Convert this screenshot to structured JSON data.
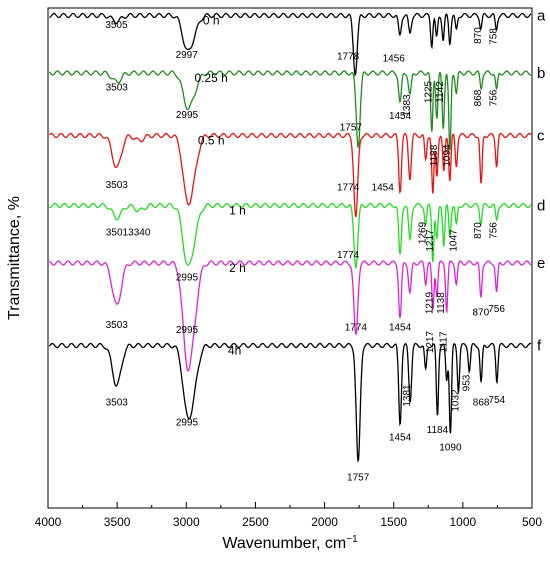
{
  "chart_data": {
    "type": "line",
    "xlabel": "Wavenumber, cm",
    "xlabel_superscript": "−1",
    "ylabel": "Transmittance, %",
    "xlim": [
      4000,
      500
    ],
    "x_reversed": true,
    "xticks": [
      4000,
      3500,
      3000,
      2500,
      2000,
      1500,
      1000,
      500
    ],
    "yticks_shown": false,
    "grid": false,
    "series": [
      {
        "name": "0 h",
        "letter": "a",
        "color": "#000000",
        "level": 0.985,
        "peaks": [
          [
            3505,
            0.012
          ],
          [
            2997,
            0.062
          ],
          [
            2945,
            0.03
          ],
          [
            1778,
            0.115
          ],
          [
            1456,
            0.04
          ],
          [
            1383,
            0.035
          ],
          [
            1225,
            0.06
          ],
          [
            1190,
            0.045
          ],
          [
            1142,
            0.05
          ],
          [
            1094,
            0.055
          ],
          [
            1047,
            0.03
          ],
          [
            870,
            0.025
          ],
          [
            758,
            0.028
          ]
        ],
        "annotations": [
          {
            "text": "0 h",
            "x": 2820,
            "drop": -0.002,
            "rot": 0
          },
          {
            "text": "3505",
            "x": 3505,
            "drop": 0.005,
            "rot": 0
          },
          {
            "text": "2997",
            "x": 2997,
            "drop": 0.065,
            "rot": 0
          },
          {
            "text": "1778",
            "x": 1830,
            "drop": 0.068,
            "rot": 0
          },
          {
            "text": "1456",
            "x": 1500,
            "drop": 0.072,
            "rot": 0
          },
          {
            "text": "870",
            "x": 870,
            "drop": 0.04,
            "rot": -90
          },
          {
            "text": "758",
            "x": 758,
            "drop": 0.042,
            "rot": -90
          }
        ]
      },
      {
        "name": "0.25 h",
        "letter": "b",
        "color": "#1e8c1e",
        "level": 0.87,
        "peaks": [
          [
            3503,
            0.018
          ],
          [
            2995,
            0.06
          ],
          [
            2945,
            0.03
          ],
          [
            1757,
            0.145
          ],
          [
            1454,
            0.06
          ],
          [
            1383,
            0.045
          ],
          [
            1225,
            0.12
          ],
          [
            1188,
            0.09
          ],
          [
            1142,
            0.11
          ],
          [
            1094,
            0.16
          ],
          [
            1047,
            0.04
          ],
          [
            868,
            0.03
          ],
          [
            756,
            0.035
          ]
        ],
        "annotations": [
          {
            "text": "0.25 h",
            "x": 2820,
            "drop": -0.002,
            "rot": 0
          },
          {
            "text": "3503",
            "x": 3503,
            "drop": 0.015,
            "rot": 0
          },
          {
            "text": "2995",
            "x": 2995,
            "drop": 0.07,
            "rot": 0
          },
          {
            "text": "1757",
            "x": 1810,
            "drop": 0.095,
            "rot": 0
          },
          {
            "text": "1454",
            "x": 1454,
            "drop": 0.072,
            "rot": 0
          },
          {
            "text": "1383",
            "x": 1383,
            "drop": 0.065,
            "rot": -90
          },
          {
            "text": "1225",
            "x": 1225,
            "drop": 0.038,
            "rot": -90
          },
          {
            "text": "1142",
            "x": 1142,
            "drop": 0.038,
            "rot": -90
          },
          {
            "text": "1188",
            "x": 1188,
            "drop": 0.165,
            "rot": -90
          },
          {
            "text": "1094",
            "x": 1094,
            "drop": 0.165,
            "rot": -90
          },
          {
            "text": "868",
            "x": 868,
            "drop": 0.05,
            "rot": -90
          },
          {
            "text": "756",
            "x": 756,
            "drop": 0.05,
            "rot": -90
          }
        ]
      },
      {
        "name": "0.5 h",
        "letter": "c",
        "color": "#ee1111",
        "level": 0.745,
        "peaks": [
          [
            3503,
            0.065
          ],
          [
            3340,
            0.01
          ],
          [
            2995,
            0.115
          ],
          [
            2945,
            0.06
          ],
          [
            1774,
            0.165
          ],
          [
            1454,
            0.11
          ],
          [
            1383,
            0.085
          ],
          [
            1269,
            0.05
          ],
          [
            1217,
            0.12
          ],
          [
            1188,
            0.08
          ],
          [
            1138,
            0.075
          ],
          [
            1094,
            0.09
          ],
          [
            1047,
            0.06
          ],
          [
            868,
            0.1
          ],
          [
            756,
            0.06
          ]
        ],
        "annotations": [
          {
            "text": "0.5 h",
            "x": 2820,
            "drop": -0.002,
            "rot": 0
          },
          {
            "text": "3503",
            "x": 3503,
            "drop": 0.085,
            "rot": 0
          },
          {
            "text": "1774",
            "x": 1830,
            "drop": 0.09,
            "rot": 0
          },
          {
            "text": "1454",
            "x": 1580,
            "drop": 0.09,
            "rot": 0
          }
        ]
      },
      {
        "name": "1 h",
        "letter": "d",
        "color": "#22dd22",
        "level": 0.605,
        "peaks": [
          [
            3501,
            0.025
          ],
          [
            3340,
            0.01
          ],
          [
            2995,
            0.105
          ],
          [
            2945,
            0.05
          ],
          [
            1774,
            0.12
          ],
          [
            1454,
            0.1
          ],
          [
            1383,
            0.07
          ],
          [
            1269,
            0.04
          ],
          [
            1217,
            0.11
          ],
          [
            1188,
            0.07
          ],
          [
            1138,
            0.08
          ],
          [
            1094,
            0.06
          ],
          [
            1047,
            0.04
          ],
          [
            870,
            0.035
          ],
          [
            756,
            0.03
          ]
        ],
        "annotations": [
          {
            "text": "1 h",
            "x": 2630,
            "drop": -0.002,
            "rot": 0
          },
          {
            "text": "3501",
            "x": 3501,
            "drop": 0.04,
            "rot": 0
          },
          {
            "text": "3340",
            "x": 3340,
            "drop": 0.04,
            "rot": 0
          },
          {
            "text": "2995",
            "x": 2995,
            "drop": 0.13,
            "rot": 0
          },
          {
            "text": "1774",
            "x": 1830,
            "drop": 0.085,
            "rot": 0
          },
          {
            "text": "1269",
            "x": 1269,
            "drop": 0.055,
            "rot": -90
          },
          {
            "text": "1217",
            "x": 1217,
            "drop": 0.07,
            "rot": -90
          },
          {
            "text": "1047",
            "x": 1047,
            "drop": 0.07,
            "rot": -90
          },
          {
            "text": "870",
            "x": 870,
            "drop": 0.05,
            "rot": -90
          },
          {
            "text": "756",
            "x": 756,
            "drop": 0.05,
            "rot": -90
          }
        ]
      },
      {
        "name": "2 h",
        "letter": "e",
        "color": "#dd22dd",
        "level": 0.49,
        "peaks": [
          [
            3503,
            0.085
          ],
          [
            2995,
            0.18
          ],
          [
            2945,
            0.09
          ],
          [
            1774,
            0.145
          ],
          [
            1454,
            0.11
          ],
          [
            1383,
            0.06
          ],
          [
            1269,
            0.04
          ],
          [
            1217,
            0.095
          ],
          [
            1188,
            0.065
          ],
          [
            1117,
            0.095
          ],
          [
            1047,
            0.04
          ],
          [
            870,
            0.07
          ],
          [
            756,
            0.06
          ]
        ],
        "annotations": [
          {
            "text": "2 h",
            "x": 2630,
            "drop": -0.002,
            "rot": 0
          },
          {
            "text": "3503",
            "x": 3503,
            "drop": 0.11,
            "rot": 0
          },
          {
            "text": "2995",
            "x": 2995,
            "drop": 0.12,
            "rot": 0
          },
          {
            "text": "1774",
            "x": 1774,
            "drop": 0.115,
            "rot": 0
          },
          {
            "text": "1454",
            "x": 1454,
            "drop": 0.115,
            "rot": 0
          },
          {
            "text": "1219",
            "x": 1219,
            "drop": 0.08,
            "rot": -90
          },
          {
            "text": "1138",
            "x": 1138,
            "drop": 0.08,
            "rot": -90
          },
          {
            "text": "1217",
            "x": 1217,
            "drop": 0.158,
            "rot": -90
          },
          {
            "text": "1117",
            "x": 1117,
            "drop": 0.158,
            "rot": -90
          },
          {
            "text": "870",
            "x": 870,
            "drop": 0.085,
            "rot": 0
          },
          {
            "text": "756",
            "x": 756,
            "drop": 0.078,
            "rot": 0
          }
        ]
      },
      {
        "name": "4h",
        "letter": "f",
        "color": "#000000",
        "level": 0.325,
        "peaks": [
          [
            3503,
            0.08
          ],
          [
            2995,
            0.12
          ],
          [
            2945,
            0.07
          ],
          [
            1757,
            0.235
          ],
          [
            1454,
            0.155
          ],
          [
            1381,
            0.11
          ],
          [
            1269,
            0.05
          ],
          [
            1184,
            0.14
          ],
          [
            1117,
            0.07
          ],
          [
            1090,
            0.175
          ],
          [
            1032,
            0.09
          ],
          [
            953,
            0.05
          ],
          [
            868,
            0.075
          ],
          [
            754,
            0.07
          ]
        ],
        "annotations": [
          {
            "text": "4h",
            "x": 2650,
            "drop": -0.002,
            "rot": 0
          },
          {
            "text": "3503",
            "x": 3503,
            "drop": 0.1,
            "rot": 0
          },
          {
            "text": "2995",
            "x": 2995,
            "drop": 0.14,
            "rot": 0
          },
          {
            "text": "1757",
            "x": 1757,
            "drop": 0.25,
            "rot": 0
          },
          {
            "text": "1454",
            "x": 1454,
            "drop": 0.17,
            "rot": 0
          },
          {
            "text": "1381",
            "x": 1381,
            "drop": 0.1,
            "rot": -90
          },
          {
            "text": "1184",
            "x": 1184,
            "drop": 0.155,
            "rot": 0
          },
          {
            "text": "1090",
            "x": 1090,
            "drop": 0.19,
            "rot": 0
          },
          {
            "text": "1032",
            "x": 1032,
            "drop": 0.11,
            "rot": -90
          },
          {
            "text": "953",
            "x": 953,
            "drop": 0.075,
            "rot": -90
          },
          {
            "text": "868",
            "x": 868,
            "drop": 0.1,
            "rot": 0
          },
          {
            "text": "754",
            "x": 754,
            "drop": 0.095,
            "rot": 0
          }
        ]
      }
    ]
  }
}
